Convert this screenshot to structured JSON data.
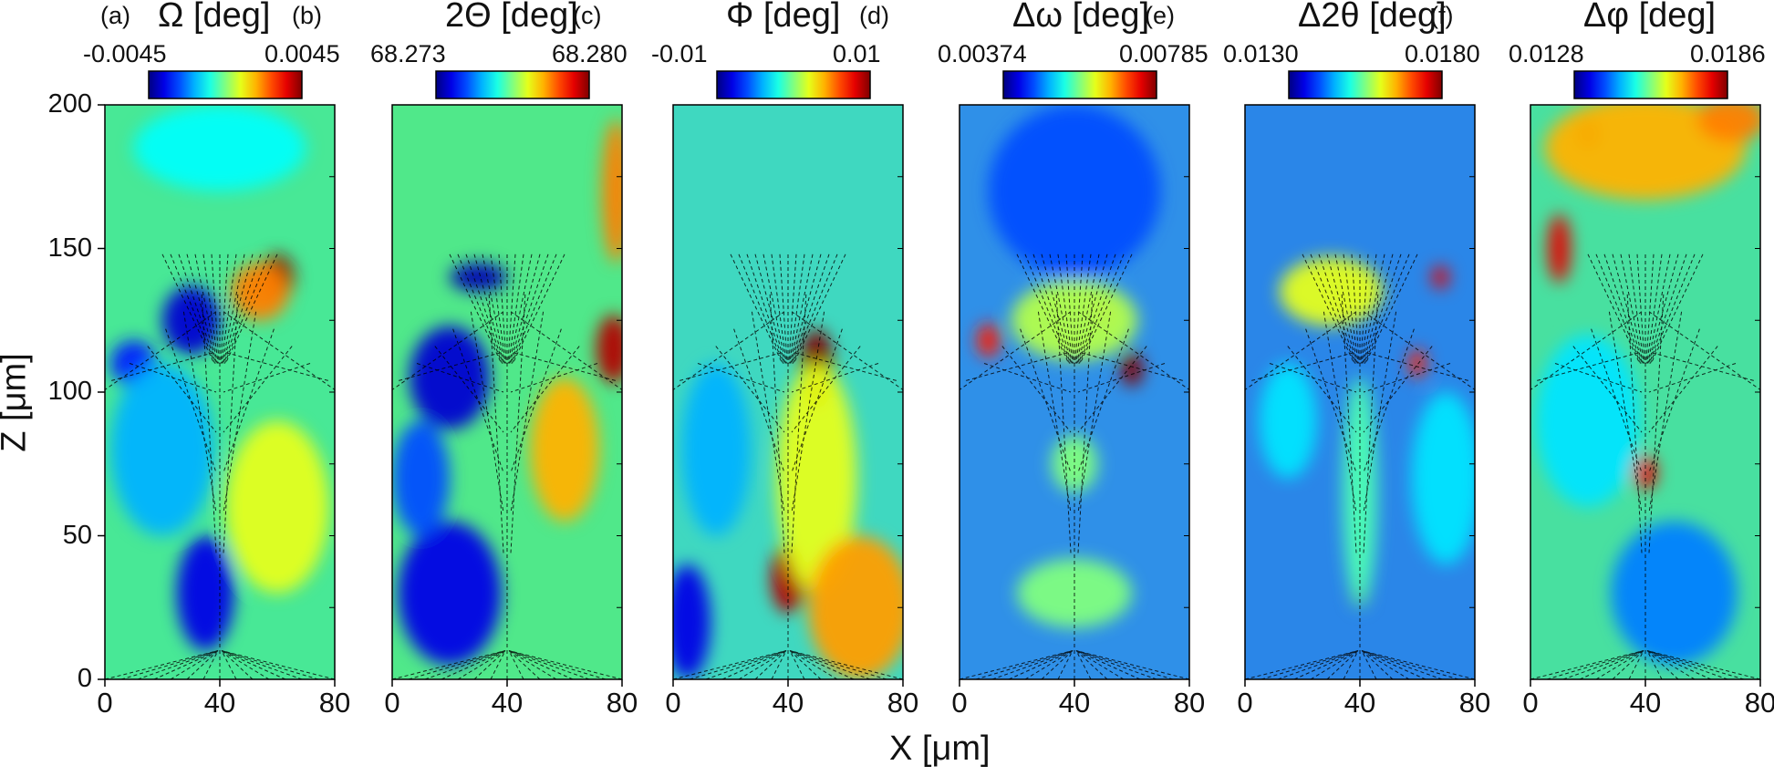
{
  "figure": {
    "xlabel": "X [μm]",
    "ylabel": "Z [μm]"
  },
  "chart_data": [
    {
      "type": "heatmap",
      "panel": "(a)",
      "title": "Ω [deg]",
      "colorbar": {
        "min": "-0.0045",
        "max": "0.0045"
      },
      "x_ticks": [
        "0",
        "40",
        "80"
      ],
      "y_ticks": [
        "0",
        "50",
        "100",
        "150",
        "200"
      ],
      "xlim": [
        0,
        80
      ],
      "ylim": [
        0,
        200
      ],
      "background": "#48e896",
      "hotspots": [
        {
          "x": 60,
          "z": 140,
          "rx": 6,
          "rz": 8,
          "value": 1.0
        },
        {
          "x": 54,
          "z": 135,
          "rx": 10,
          "rz": 10,
          "value": 0.75
        },
        {
          "x": 30,
          "z": 125,
          "rx": 10,
          "rz": 12,
          "value": 0.08
        },
        {
          "x": 10,
          "z": 110,
          "rx": 8,
          "rz": 8,
          "value": 0.15
        },
        {
          "x": 35,
          "z": 30,
          "rx": 10,
          "rz": 20,
          "value": 0.1
        },
        {
          "x": 20,
          "z": 80,
          "rx": 18,
          "rz": 30,
          "value": 0.3
        },
        {
          "x": 40,
          "z": 185,
          "rx": 30,
          "rz": 15,
          "value": 0.38
        },
        {
          "x": 60,
          "z": 60,
          "rx": 18,
          "rz": 30,
          "value": 0.6
        }
      ]
    },
    {
      "type": "heatmap",
      "panel": "(b)",
      "title": "2Θ [deg]",
      "colorbar": {
        "min": "68.273",
        "max": "68.280"
      },
      "x_ticks": [
        "0",
        "40",
        "80"
      ],
      "y_ticks": [],
      "xlim": [
        0,
        80
      ],
      "ylim": [
        0,
        200
      ],
      "background": "#50e88a",
      "hotspots": [
        {
          "x": 77,
          "z": 115,
          "rx": 6,
          "rz": 12,
          "value": 0.95
        },
        {
          "x": 78,
          "z": 170,
          "rx": 5,
          "rz": 25,
          "value": 0.75
        },
        {
          "x": 30,
          "z": 140,
          "rx": 10,
          "rz": 5,
          "value": 0.05
        },
        {
          "x": 20,
          "z": 105,
          "rx": 14,
          "rz": 18,
          "value": 0.08
        },
        {
          "x": 20,
          "z": 30,
          "rx": 18,
          "rz": 25,
          "value": 0.1
        },
        {
          "x": 60,
          "z": 80,
          "rx": 12,
          "rz": 25,
          "value": 0.7
        },
        {
          "x": 10,
          "z": 70,
          "rx": 10,
          "rz": 20,
          "value": 0.2
        }
      ]
    },
    {
      "type": "heatmap",
      "panel": "(c)",
      "title": "Φ [deg]",
      "colorbar": {
        "min": "-0.01",
        "max": "0.01"
      },
      "x_ticks": [
        "0",
        "40",
        "80"
      ],
      "y_ticks": [],
      "xlim": [
        0,
        80
      ],
      "ylim": [
        0,
        200
      ],
      "background": "#3fd8c0",
      "hotspots": [
        {
          "x": 50,
          "z": 108,
          "rx": 6,
          "rz": 14,
          "value": 1.0
        },
        {
          "x": 40,
          "z": 35,
          "rx": 6,
          "rz": 12,
          "value": 0.95
        },
        {
          "x": 50,
          "z": 70,
          "rx": 14,
          "rz": 40,
          "value": 0.6
        },
        {
          "x": 65,
          "z": 25,
          "rx": 18,
          "rz": 25,
          "value": 0.72
        },
        {
          "x": 5,
          "z": 20,
          "rx": 8,
          "rz": 20,
          "value": 0.1
        },
        {
          "x": 15,
          "z": 80,
          "rx": 12,
          "rz": 30,
          "value": 0.3
        }
      ]
    },
    {
      "type": "heatmap",
      "panel": "(d)",
      "title": "Δω [deg]",
      "colorbar": {
        "min": "0.00374",
        "max": "0.00785"
      },
      "x_ticks": [
        "0",
        "40",
        "80"
      ],
      "y_ticks": [],
      "xlim": [
        0,
        80
      ],
      "ylim": [
        0,
        200
      ],
      "background": "#2f90e8",
      "hotspots": [
        {
          "x": 60,
          "z": 108,
          "rx": 4,
          "rz": 6,
          "value": 1.0
        },
        {
          "x": 10,
          "z": 118,
          "rx": 4,
          "rz": 6,
          "value": 0.85
        },
        {
          "x": 50,
          "z": 128,
          "rx": 4,
          "rz": 4,
          "value": 0.85
        },
        {
          "x": 40,
          "z": 125,
          "rx": 22,
          "rz": 14,
          "value": 0.55
        },
        {
          "x": 40,
          "z": 30,
          "rx": 20,
          "rz": 12,
          "value": 0.5
        },
        {
          "x": 40,
          "z": 75,
          "rx": 8,
          "rz": 10,
          "value": 0.5
        },
        {
          "x": 40,
          "z": 170,
          "rx": 30,
          "rz": 30,
          "value": 0.2
        }
      ]
    },
    {
      "type": "heatmap",
      "panel": "(e)",
      "title": "Δ2θ [deg]",
      "colorbar": {
        "min": "0.0130",
        "max": "0.0180"
      },
      "x_ticks": [
        "0",
        "40",
        "80"
      ],
      "y_ticks": [],
      "xlim": [
        0,
        80
      ],
      "ylim": [
        0,
        200
      ],
      "background": "#2a86e8",
      "hotspots": [
        {
          "x": 40,
          "z": 30,
          "rx": 3,
          "rz": 5,
          "value": 1.0
        },
        {
          "x": 68,
          "z": 140,
          "rx": 3,
          "rz": 4,
          "value": 0.9
        },
        {
          "x": 60,
          "z": 110,
          "rx": 3,
          "rz": 5,
          "value": 0.85
        },
        {
          "x": 30,
          "z": 135,
          "rx": 18,
          "rz": 12,
          "value": 0.6
        },
        {
          "x": 40,
          "z": 65,
          "rx": 6,
          "rz": 40,
          "value": 0.45
        },
        {
          "x": 15,
          "z": 90,
          "rx": 10,
          "rz": 20,
          "value": 0.35
        },
        {
          "x": 70,
          "z": 70,
          "rx": 12,
          "rz": 30,
          "value": 0.35
        }
      ]
    },
    {
      "type": "heatmap",
      "panel": "(f)",
      "title": "Δφ [deg]",
      "colorbar": {
        "min": "0.0128",
        "max": "0.0186"
      },
      "x_ticks": [
        "0",
        "40",
        "80"
      ],
      "y_ticks": [],
      "xlim": [
        0,
        80
      ],
      "ylim": [
        0,
        200
      ],
      "background": "#48e0a0",
      "hotspots": [
        {
          "x": 20,
          "z": 190,
          "rx": 4,
          "rz": 5,
          "value": 1.0
        },
        {
          "x": 10,
          "z": 150,
          "rx": 4,
          "rz": 12,
          "value": 0.9
        },
        {
          "x": 40,
          "z": 72,
          "rx": 4,
          "rz": 6,
          "value": 0.9
        },
        {
          "x": 40,
          "z": 185,
          "rx": 35,
          "rz": 18,
          "value": 0.7
        },
        {
          "x": 70,
          "z": 195,
          "rx": 12,
          "rz": 8,
          "value": 0.75
        },
        {
          "x": 50,
          "z": 30,
          "rx": 22,
          "rz": 25,
          "value": 0.25
        },
        {
          "x": 20,
          "z": 90,
          "rx": 18,
          "rz": 30,
          "value": 0.35
        }
      ]
    }
  ]
}
